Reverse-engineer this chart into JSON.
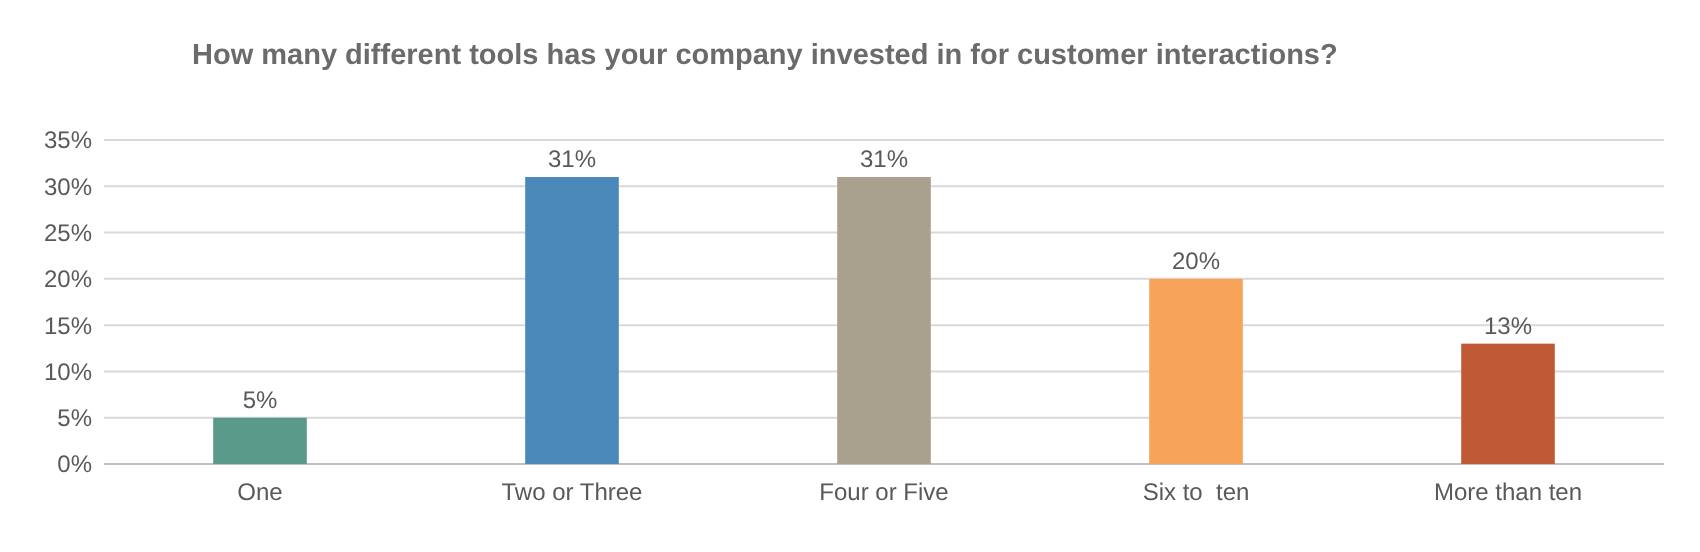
{
  "chart_data": {
    "type": "bar",
    "title": "How many different tools has your company invested in for customer interactions?",
    "categories": [
      "One",
      "Two or Three",
      "Four or Five",
      "Six to  ten",
      "More than ten"
    ],
    "values": [
      5,
      31,
      31,
      20,
      13
    ],
    "colors": [
      "#5a9a8a",
      "#4a88ba",
      "#a9a08e",
      "#f8a35a",
      "#c05a36"
    ],
    "value_labels": [
      "5%",
      "31%",
      "31%",
      "20%",
      "13%"
    ],
    "ylim": [
      0,
      35
    ],
    "yticks": [
      {
        "value": 0,
        "label": "0%"
      },
      {
        "value": 5,
        "label": "5%"
      },
      {
        "value": 10,
        "label": "10%"
      },
      {
        "value": 15,
        "label": "15%"
      },
      {
        "value": 20,
        "label": "20%"
      },
      {
        "value": 25,
        "label": "25%"
      },
      {
        "value": 30,
        "label": "30%"
      },
      {
        "value": 35,
        "label": "35%"
      }
    ],
    "grid": "y"
  }
}
